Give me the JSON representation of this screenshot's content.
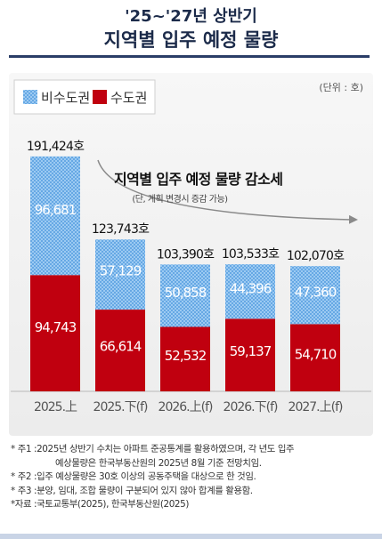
{
  "header": {
    "title_line1": "'25~'27년 상반기",
    "title_line2": "지역별 입주 예정 물량"
  },
  "chart_data": {
    "type": "bar",
    "stacked": true,
    "unit_label": "(단위 : 호)",
    "categories": [
      "2025.上",
      "2025.下(f)",
      "2026.上(f)",
      "2026.下(f)",
      "2027.上(f)"
    ],
    "series": [
      {
        "name": "수도권",
        "values": [
          94743,
          66614,
          52532,
          59137,
          54710
        ],
        "color": "#c0000f"
      },
      {
        "name": "비수도권",
        "values": [
          96681,
          57129,
          50858,
          44396,
          47360
        ],
        "color": "#5ea8e8"
      }
    ],
    "value_labels": {
      "수도권": [
        "94,743",
        "66,614",
        "52,532",
        "59,137",
        "54,710"
      ],
      "비수도권": [
        "96,681",
        "57,129",
        "50,858",
        "44,396",
        "47,360"
      ]
    },
    "totals": [
      "191,424호",
      "123,743호",
      "103,390호",
      "103,533호",
      "102,070호"
    ],
    "total_values": [
      191424,
      123743,
      103390,
      103533,
      102070
    ],
    "ylim": [
      0,
      200000
    ],
    "legend_position": "top-left",
    "annotation": {
      "title": "지역별 입주 예정 물량 감소세",
      "subtitle": "(단, 계획 변경시 증감 가능)"
    }
  },
  "footnotes": [
    {
      "mark": "* 주1 : ",
      "text": "2025년 상반기 수치는 아파트 준공통계를 활용하였으며, 각 년도 입주",
      "cont": "예상물량은 한국부동산원의 2025년 8월 기준 전망치임."
    },
    {
      "mark": "* 주2 : ",
      "text": "입주 예상물량은 30호 이상의 공동주택을 대상으로 한 것임."
    },
    {
      "mark": "* 주3 : ",
      "text": "분양, 임대, 조합 물량이 구분되어 있지 않아 합계를 활용함."
    },
    {
      "mark": "*자료 : ",
      "text": "국토교통부(2025), 한국부동산원(2025)"
    }
  ]
}
